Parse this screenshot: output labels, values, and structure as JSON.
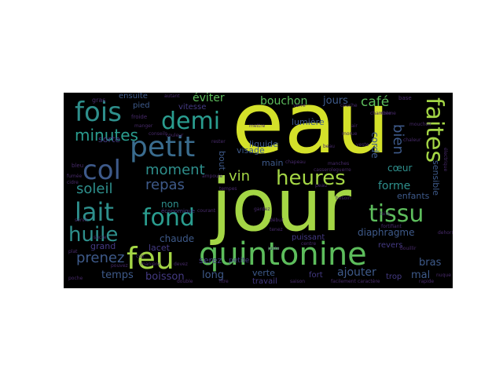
{
  "colors": {
    "background": "#000000",
    "page": "#ffffff",
    "yellow": "#d4e12a",
    "lime": "#a4d645",
    "green": "#5dbd5c",
    "teal": "#2a9d8f",
    "cyan": "#2e8f8c",
    "blue": "#3a6c8e",
    "slate": "#3e5a8a",
    "indigo": "#443a83",
    "purple": "#472a6a"
  },
  "words": {
    "eau": "eau",
    "jour": "jour",
    "quintonine": "quintonine",
    "feu": "feu",
    "petit": "petit",
    "fois": "fois",
    "demi": "demi",
    "lait": "lait",
    "fond": "fond",
    "col": "col",
    "huile": "huile",
    "tissu": "tissu",
    "heures": "heures",
    "faites": "faites",
    "minutes": "minutes",
    "moment": "moment",
    "repas": "repas",
    "soleil": "soleil",
    "prenez": "prenez",
    "vin": "vin",
    "cafe": "café",
    "bouchon": "bouchon",
    "jours": "jours",
    "eviter": "éviter",
    "mettez": "mettez",
    "bien": "bien",
    "forme": "forme",
    "temps": "temps",
    "boisson": "boisson",
    "long": "long",
    "ajouter": "ajouter",
    "mal": "mal",
    "bras": "bras",
    "chaude": "chaude",
    "non": "non",
    "grand": "grand",
    "lacet": "lacet",
    "serez": "serez",
    "verte": "verte",
    "liquide": "liquide",
    "lumiere": "lumière",
    "sorte": "sorte",
    "visage": "visage",
    "main": "main",
    "coeur": "cœur",
    "enfants": "enfants",
    "diaphragme": "diaphragme",
    "sensible": "sensible",
    "corde": "corde",
    "puissant": "puissant",
    "fort": "fort",
    "travail": "travail",
    "trop": "trop",
    "revers": "revers",
    "bout": "bout",
    "vitesse": "vitesse",
    "ensuite": "ensuite",
    "pied": "pied",
    "economique": "économique",
    "petite": "petite",
    "gras": "gras",
    "bleu": "bleu",
    "fumee": "fumée",
    "cidre": "cidre",
    "froide": "froide",
    "verre": "verre",
    "chambre": "chambre",
    "base": "base",
    "air": "air",
    "autant": "autant",
    "cuir": "cuir",
    "litre": "litre",
    "double": "double",
    "facilement": "facilement",
    "caractere": "caractère",
    "nuque": "nuque",
    "ampoule": "ampoule",
    "chapeau": "chapeau",
    "casserole": "casserole",
    "conseils": "conseils",
    "couleur": "couleur",
    "manches": "manches",
    "bouillir": "bouillir",
    "maniere": "manière",
    "gardez": "gardez",
    "tenez": "tenez",
    "centre": "centre",
    "juste": "juste",
    "couche": "couche",
    "creme": "crème",
    "guerre": "guerre",
    "mettre": "mettre",
    "debut": "début",
    "besoin": "besoin",
    "morue": "morue",
    "fortifiant": "fortifiant",
    "electrique": "électrique",
    "bouteille": "bouteille",
    "servir": "servir",
    "sucre": "sucre",
    "saison": "saison",
    "manger": "manger",
    "courant": "courant",
    "devez": "devez",
    "pouvez": "pouvez",
    "plat": "plat",
    "poche": "poche",
    "mouchoir": "mouchoir",
    "beau": "beau",
    "rester": "rester",
    "faire": "faire",
    "peau": "peau",
    "dehors": "dehors",
    "tempes": "tempes",
    "veste": "veste",
    "rapide": "rapide",
    "chaleur": "chaleur"
  }
}
